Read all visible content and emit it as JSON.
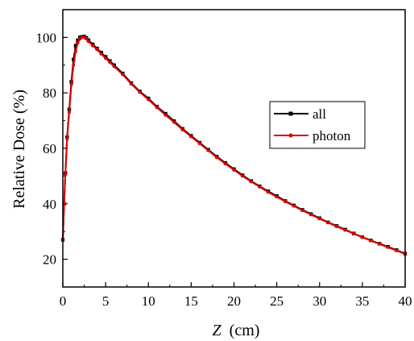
{
  "chart_data": {
    "type": "line",
    "xlabel_var": "Z",
    "xlabel_unit": "(cm)",
    "ylabel": "Relative Dose (%)",
    "xlim": [
      0,
      40
    ],
    "ylim": [
      10,
      110
    ],
    "xticks": [
      0,
      5,
      10,
      15,
      20,
      25,
      30,
      35,
      40
    ],
    "yticks": [
      20,
      40,
      60,
      80,
      100
    ],
    "grid": false,
    "legend_position": "right",
    "series": [
      {
        "name": "all",
        "color": "#000000",
        "marker": "square",
        "x": [
          0,
          0.15,
          0.3,
          0.5,
          0.75,
          1.0,
          1.25,
          1.5,
          1.75,
          2.0,
          2.25,
          2.5,
          2.75,
          3.0,
          3.5,
          4.0,
          4.5,
          5.0,
          5.5,
          6.0,
          7.0,
          8.0,
          9.0,
          10.0,
          11.0,
          12.0,
          13.0,
          14.0,
          15.0,
          16.0,
          17.0,
          18.0,
          19.0,
          20.0,
          21.0,
          22.0,
          23.0,
          24.0,
          25.0,
          26.0,
          27.0,
          28.0,
          29.0,
          30.0,
          31.0,
          32.0,
          33.0,
          34.0,
          35.0,
          36.0,
          37.0,
          38.0,
          39.0,
          40.0
        ],
        "y": [
          27,
          40,
          51,
          64,
          74,
          84,
          92,
          97,
          99,
          100,
          100.2,
          100.3,
          99.8,
          99,
          97.5,
          96,
          94.5,
          93,
          91.5,
          90,
          87,
          83.5,
          80.5,
          78,
          75,
          72.5,
          69.8,
          67,
          64.5,
          62,
          59.5,
          57,
          54.7,
          52.5,
          50.3,
          48.2,
          46.3,
          44.5,
          42.8,
          41,
          39.4,
          37.8,
          36.3,
          34.8,
          33.3,
          32,
          30.7,
          29.3,
          28,
          26.8,
          25.6,
          24.5,
          23.3,
          22
        ]
      },
      {
        "name": "photon",
        "color": "#e00000",
        "marker": "circle",
        "x": [
          0,
          0.15,
          0.3,
          0.5,
          0.75,
          1.0,
          1.25,
          1.5,
          1.75,
          2.0,
          2.25,
          2.5,
          2.75,
          3.0,
          3.5,
          4.0,
          4.5,
          5.0,
          5.5,
          6.0,
          7.0,
          8.0,
          9.0,
          10.0,
          11.0,
          12.0,
          13.0,
          14.0,
          15.0,
          16.0,
          17.0,
          18.0,
          19.0,
          20.0,
          21.0,
          22.0,
          23.0,
          24.0,
          25.0,
          26.0,
          27.0,
          28.0,
          29.0,
          30.0,
          31.0,
          32.0,
          33.0,
          34.0,
          35.0,
          36.0,
          37.0,
          38.0,
          39.0,
          40.0
        ],
        "y": [
          27,
          40,
          50.5,
          63.5,
          73,
          83,
          90,
          95,
          98,
          99.5,
          100,
          100,
          99.5,
          98.5,
          97,
          95.6,
          94,
          92.5,
          91,
          89.5,
          86.6,
          83.2,
          80.2,
          77.6,
          74.7,
          72,
          69.4,
          66.7,
          64.2,
          61.7,
          59.2,
          56.7,
          54.4,
          52.2,
          50,
          48,
          46.1,
          44.2,
          42.5,
          40.8,
          39.2,
          37.6,
          36.1,
          34.6,
          33.2,
          31.8,
          30.5,
          29.2,
          27.9,
          26.7,
          25.5,
          24.3,
          23.1,
          21.9
        ]
      }
    ]
  }
}
